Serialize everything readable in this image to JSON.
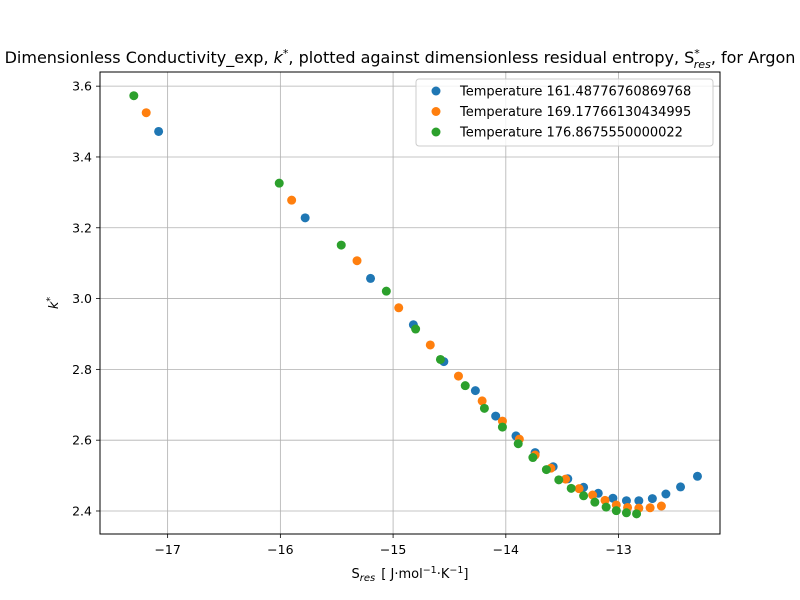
{
  "chart_data": {
    "type": "scatter",
    "title_parts": {
      "before_k": "Dimensionless Conductivity_exp, ",
      "k_symbol": "k",
      "k_sup": "*",
      "middle": ", plotted against dimensionless residual entropy, S",
      "s_sup": "*",
      "s_sub": "res",
      "after": ", for Argon"
    },
    "xlabel_parts": {
      "main": "S",
      "sub": "res",
      "unit": "[ J·mol",
      "exp1": "−1",
      "middot": "·K",
      "exp2": "−1",
      "close": "]"
    },
    "ylabel_parts": {
      "main": "k",
      "sup": "*"
    },
    "xlim": [
      -17.6,
      -12.1
    ],
    "ylim": [
      2.335,
      3.64
    ],
    "xticks": [
      -17,
      -16,
      -15,
      -14,
      -13
    ],
    "xtick_labels": [
      "−17",
      "−16",
      "−15",
      "−14",
      "−13"
    ],
    "yticks": [
      2.4,
      2.6,
      2.8,
      3.0,
      3.2,
      3.4,
      3.6
    ],
    "ytick_labels": [
      "2.4",
      "2.6",
      "2.8",
      "3.0",
      "3.2",
      "3.4",
      "3.6"
    ],
    "grid": true,
    "legend_position": "upper right",
    "series": [
      {
        "name": "Temperature 161.48776760869768",
        "color": "#1f77b4",
        "x": [
          -17.08,
          -15.78,
          -15.2,
          -14.82,
          -14.55,
          -14.27,
          -14.09,
          -13.91,
          -13.74,
          -13.58,
          -13.45,
          -13.31,
          -13.18,
          -13.05,
          -12.93,
          -12.82,
          -12.7,
          -12.58,
          -12.45,
          -12.3
        ],
        "y": [
          3.472,
          3.228,
          3.057,
          2.926,
          2.822,
          2.74,
          2.668,
          2.612,
          2.565,
          2.525,
          2.491,
          2.467,
          2.45,
          2.436,
          2.429,
          2.429,
          2.435,
          2.448,
          2.468,
          2.498
        ]
      },
      {
        "name": "Temperature 169.17766130434995",
        "color": "#ff7f0e",
        "x": [
          -17.19,
          -15.9,
          -15.32,
          -14.95,
          -14.67,
          -14.42,
          -14.21,
          -14.03,
          -13.88,
          -13.74,
          -13.6,
          -13.47,
          -13.35,
          -13.23,
          -13.12,
          -13.02,
          -12.92,
          -12.82,
          -12.72,
          -12.62
        ],
        "y": [
          3.525,
          3.278,
          3.107,
          2.974,
          2.869,
          2.781,
          2.711,
          2.654,
          2.603,
          2.558,
          2.521,
          2.49,
          2.463,
          2.445,
          2.43,
          2.417,
          2.41,
          2.408,
          2.409,
          2.414
        ]
      },
      {
        "name": "Temperature 176.8675550000022",
        "color": "#2ca02c",
        "x": [
          -17.3,
          -16.01,
          -15.46,
          -15.06,
          -14.8,
          -14.58,
          -14.36,
          -14.19,
          -14.03,
          -13.89,
          -13.76,
          -13.64,
          -13.53,
          -13.42,
          -13.31,
          -13.21,
          -13.11,
          -13.02,
          -12.93,
          -12.84
        ],
        "y": [
          3.573,
          3.326,
          3.151,
          3.021,
          2.914,
          2.828,
          2.754,
          2.69,
          2.637,
          2.59,
          2.551,
          2.517,
          2.488,
          2.464,
          2.443,
          2.425,
          2.411,
          2.401,
          2.395,
          2.392
        ]
      }
    ]
  }
}
